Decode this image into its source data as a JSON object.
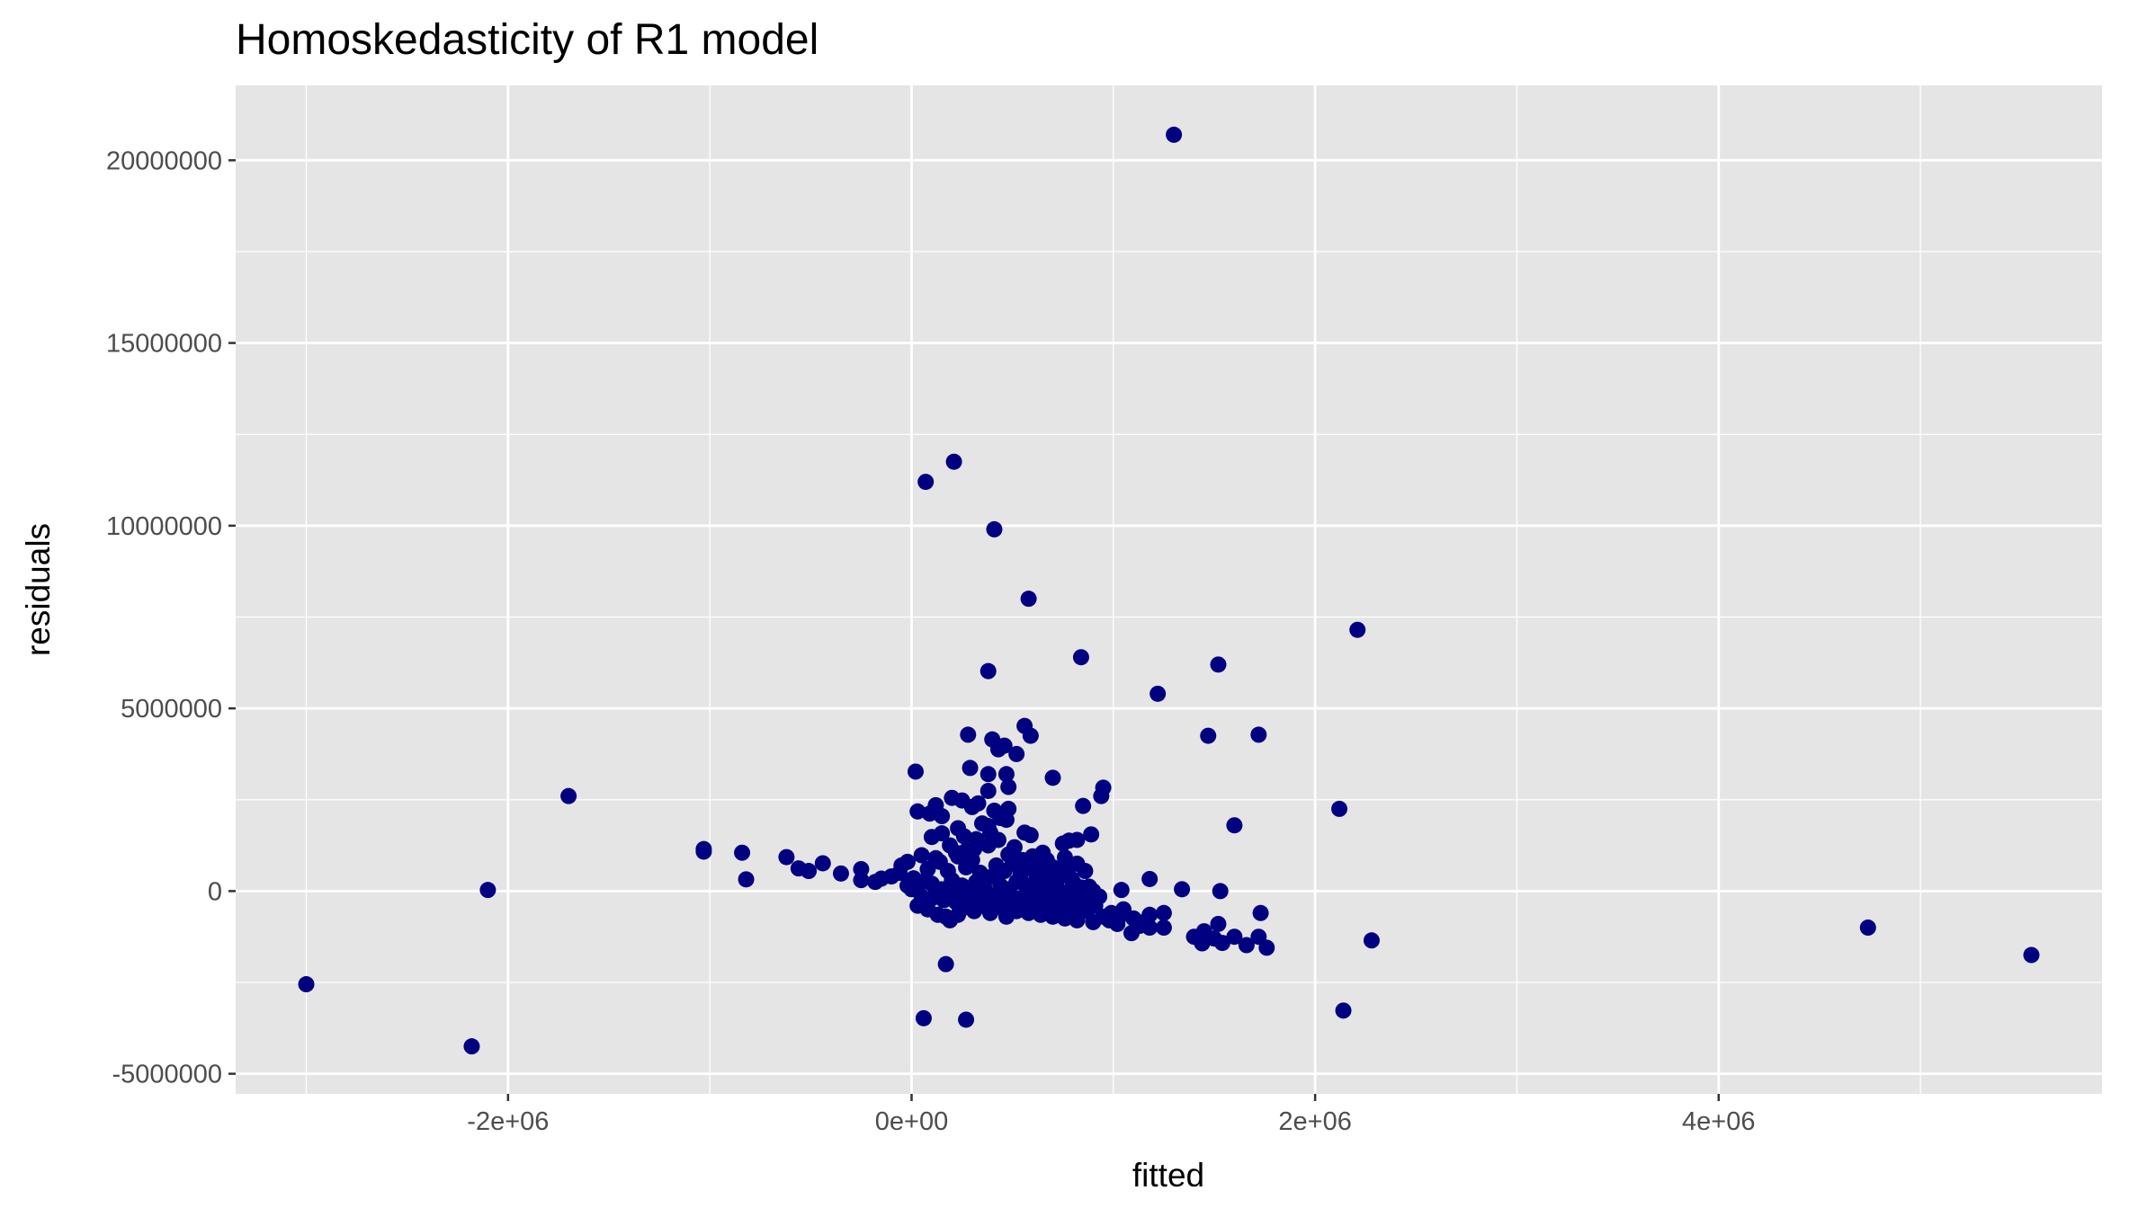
{
  "chart_data": {
    "type": "scatter",
    "title": "Homoskedasticity of R1 model",
    "xlabel": "fitted",
    "ylabel": "residuals",
    "xlim": [
      -3350000,
      5900000
    ],
    "ylim": [
      -5550000,
      22050000
    ],
    "x_ticks": [
      {
        "value": -2000000,
        "label": "-2e+06"
      },
      {
        "value": 0,
        "label": "0e+00"
      },
      {
        "value": 2000000,
        "label": "2e+06"
      },
      {
        "value": 4000000,
        "label": "4e+06"
      }
    ],
    "x_minor": [
      -3000000,
      -1000000,
      1000000,
      3000000,
      5000000
    ],
    "y_ticks": [
      {
        "value": -5000000,
        "label": "-5000000"
      },
      {
        "value": 0,
        "label": "0"
      },
      {
        "value": 5000000,
        "label": "5000000"
      },
      {
        "value": 10000000,
        "label": "10000000"
      },
      {
        "value": 15000000,
        "label": "15000000"
      },
      {
        "value": 20000000,
        "label": "20000000"
      }
    ],
    "y_minor": [
      -2500000,
      2500000,
      7500000,
      12500000,
      17500000
    ],
    "grid": true,
    "colors": {
      "panel": "#e5e5e5",
      "grid": "#ffffff",
      "point": "#000080"
    },
    "points": [
      [
        1300000,
        20700000
      ],
      [
        210000,
        11750000
      ],
      [
        70000,
        11200000
      ],
      [
        410000,
        9900000
      ],
      [
        580000,
        8000000
      ],
      [
        2210000,
        7150000
      ],
      [
        840000,
        6400000
      ],
      [
        1520000,
        6200000
      ],
      [
        380000,
        6020000
      ],
      [
        1220000,
        5400000
      ],
      [
        560000,
        4520000
      ],
      [
        1470000,
        4250000
      ],
      [
        1720000,
        4280000
      ],
      [
        280000,
        4280000
      ],
      [
        400000,
        4150000
      ],
      [
        590000,
        4250000
      ],
      [
        460000,
        3980000
      ],
      [
        430000,
        3880000
      ],
      [
        520000,
        3750000
      ],
      [
        290000,
        3370000
      ],
      [
        20000,
        3270000
      ],
      [
        470000,
        3200000
      ],
      [
        380000,
        3200000
      ],
      [
        700000,
        3100000
      ],
      [
        950000,
        2830000
      ],
      [
        480000,
        2850000
      ],
      [
        380000,
        2740000
      ],
      [
        940000,
        2600000
      ],
      [
        -1700000,
        2600000
      ],
      [
        200000,
        2550000
      ],
      [
        250000,
        2480000
      ],
      [
        330000,
        2400000
      ],
      [
        300000,
        2300000
      ],
      [
        120000,
        2350000
      ],
      [
        410000,
        2200000
      ],
      [
        2120000,
        2250000
      ],
      [
        850000,
        2330000
      ],
      [
        480000,
        2250000
      ],
      [
        30000,
        2180000
      ],
      [
        150000,
        2050000
      ],
      [
        90000,
        2120000
      ],
      [
        440000,
        2000000
      ],
      [
        1600000,
        1800000
      ],
      [
        380000,
        1780000
      ],
      [
        230000,
        1720000
      ],
      [
        150000,
        1580000
      ],
      [
        560000,
        1600000
      ],
      [
        590000,
        1530000
      ],
      [
        890000,
        1550000
      ],
      [
        100000,
        1480000
      ],
      [
        320000,
        1420000
      ],
      [
        780000,
        1380000
      ],
      [
        820000,
        1400000
      ],
      [
        750000,
        1300000
      ],
      [
        -1030000,
        1150000
      ],
      [
        -1030000,
        1080000
      ],
      [
        -840000,
        1050000
      ],
      [
        270000,
        1100000
      ],
      [
        650000,
        1050000
      ],
      [
        480000,
        1000000
      ],
      [
        50000,
        980000
      ],
      [
        -620000,
        930000
      ],
      [
        760000,
        920000
      ],
      [
        -440000,
        760000
      ],
      [
        -560000,
        620000
      ],
      [
        -510000,
        550000
      ],
      [
        -250000,
        600000
      ],
      [
        -350000,
        480000
      ],
      [
        -820000,
        320000
      ],
      [
        -250000,
        300000
      ],
      [
        -150000,
        340000
      ],
      [
        -100000,
        400000
      ],
      [
        -180000,
        250000
      ],
      [
        -50000,
        700000
      ],
      [
        -20000,
        800000
      ],
      [
        -60000,
        500000
      ],
      [
        -20000,
        150000
      ],
      [
        0,
        50000
      ],
      [
        10000,
        350000
      ],
      [
        50000,
        250000
      ],
      [
        80000,
        600000
      ],
      [
        100000,
        200000
      ],
      [
        120000,
        900000
      ],
      [
        150000,
        50000
      ],
      [
        180000,
        550000
      ],
      [
        200000,
        300000
      ],
      [
        220000,
        1050000
      ],
      [
        250000,
        150000
      ],
      [
        270000,
        650000
      ],
      [
        300000,
        850000
      ],
      [
        320000,
        250000
      ],
      [
        340000,
        500000
      ],
      [
        360000,
        100000
      ],
      [
        380000,
        1250000
      ],
      [
        400000,
        400000
      ],
      [
        420000,
        700000
      ],
      [
        440000,
        150000
      ],
      [
        460000,
        550000
      ],
      [
        480000,
        50000
      ],
      [
        500000,
        750000
      ],
      [
        520000,
        250000
      ],
      [
        540000,
        450000
      ],
      [
        560000,
        600000
      ],
      [
        580000,
        150000
      ],
      [
        600000,
        950000
      ],
      [
        620000,
        350000
      ],
      [
        640000,
        50000
      ],
      [
        660000,
        500000
      ],
      [
        680000,
        200000
      ],
      [
        700000,
        650000
      ],
      [
        720000,
        100000
      ],
      [
        740000,
        400000
      ],
      [
        760000,
        550000
      ],
      [
        780000,
        0
      ],
      [
        800000,
        250000
      ],
      [
        820000,
        750000
      ],
      [
        840000,
        100000
      ],
      [
        880000,
        120000
      ],
      [
        900000,
        0
      ],
      [
        930000,
        -150000
      ],
      [
        1040000,
        30000
      ],
      [
        1180000,
        330000
      ],
      [
        1340000,
        50000
      ],
      [
        1530000,
        0
      ],
      [
        -2100000,
        30000
      ],
      [
        -3000000,
        -2550000
      ],
      [
        -2180000,
        -4250000
      ],
      [
        270000,
        -3520000
      ],
      [
        60000,
        -3480000
      ],
      [
        170000,
        -2000000
      ],
      [
        2140000,
        -3270000
      ],
      [
        2280000,
        -1350000
      ],
      [
        4740000,
        -1000000
      ],
      [
        5550000,
        -1750000
      ],
      [
        1760000,
        -1550000
      ],
      [
        1660000,
        -1480000
      ],
      [
        1720000,
        -1250000
      ],
      [
        1600000,
        -1250000
      ],
      [
        1540000,
        -1420000
      ],
      [
        1500000,
        -1300000
      ],
      [
        1440000,
        -1430000
      ],
      [
        1400000,
        -1250000
      ],
      [
        1450000,
        -1100000
      ],
      [
        1520000,
        -900000
      ],
      [
        1730000,
        -600000
      ],
      [
        1250000,
        -1000000
      ],
      [
        1250000,
        -600000
      ],
      [
        1180000,
        -1000000
      ],
      [
        1180000,
        -650000
      ],
      [
        1090000,
        -1150000
      ],
      [
        1130000,
        -950000
      ],
      [
        1020000,
        -900000
      ],
      [
        1040000,
        -650000
      ],
      [
        980000,
        -800000
      ],
      [
        900000,
        -850000
      ],
      [
        820000,
        -800000
      ],
      [
        760000,
        -750000
      ],
      [
        700000,
        -700000
      ],
      [
        640000,
        -650000
      ],
      [
        580000,
        -600000
      ],
      [
        520000,
        -550000
      ],
      [
        460000,
        -500000
      ],
      [
        400000,
        -450000
      ],
      [
        340000,
        -400000
      ],
      [
        280000,
        -350000
      ],
      [
        220000,
        -300000
      ],
      [
        160000,
        -250000
      ],
      [
        100000,
        -200000
      ],
      [
        50000,
        -150000
      ],
      [
        30000,
        -400000
      ],
      [
        80000,
        -500000
      ],
      [
        130000,
        -650000
      ],
      [
        170000,
        -700000
      ],
      [
        190000,
        -800000
      ],
      [
        230000,
        -650000
      ],
      [
        260000,
        -450000
      ],
      [
        310000,
        -550000
      ],
      [
        350000,
        -300000
      ],
      [
        390000,
        -600000
      ],
      [
        430000,
        -200000
      ],
      [
        470000,
        -700000
      ],
      [
        510000,
        -350000
      ],
      [
        550000,
        -500000
      ],
      [
        590000,
        -250000
      ],
      [
        630000,
        -450000
      ],
      [
        670000,
        -600000
      ],
      [
        710000,
        -350000
      ],
      [
        750000,
        -500000
      ],
      [
        790000,
        -650000
      ],
      [
        830000,
        -450000
      ],
      [
        870000,
        -550000
      ],
      [
        910000,
        -400000
      ],
      [
        950000,
        -700000
      ],
      [
        990000,
        -600000
      ],
      [
        1050000,
        -500000
      ],
      [
        1100000,
        -750000
      ],
      [
        1150000,
        -850000
      ],
      [
        210000,
        -100000
      ],
      [
        250000,
        -200000
      ],
      [
        290000,
        -100000
      ],
      [
        330000,
        -200000
      ],
      [
        370000,
        -50000
      ],
      [
        410000,
        -150000
      ],
      [
        450000,
        -300000
      ],
      [
        490000,
        -100000
      ],
      [
        530000,
        -200000
      ],
      [
        570000,
        -50000
      ],
      [
        610000,
        -150000
      ],
      [
        650000,
        -300000
      ],
      [
        690000,
        -100000
      ],
      [
        730000,
        -200000
      ],
      [
        770000,
        -350000
      ],
      [
        810000,
        -250000
      ],
      [
        850000,
        -300000
      ],
      [
        140000,
        800000
      ],
      [
        190000,
        1250000
      ],
      [
        230000,
        950000
      ],
      [
        260000,
        1500000
      ],
      [
        310000,
        1150000
      ],
      [
        350000,
        1850000
      ],
      [
        390000,
        1600000
      ],
      [
        430000,
        1400000
      ],
      [
        470000,
        1950000
      ],
      [
        510000,
        1200000
      ],
      [
        550000,
        850000
      ],
      [
        610000,
        700000
      ],
      [
        670000,
        850000
      ],
      [
        730000,
        500000
      ],
      [
        790000,
        350000
      ],
      [
        860000,
        550000
      ]
    ]
  }
}
